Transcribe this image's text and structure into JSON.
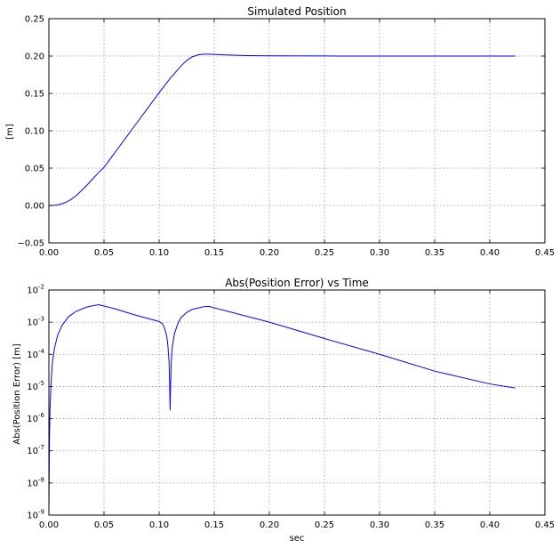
{
  "chart_data": [
    {
      "type": "line",
      "title": "Simulated Position",
      "xlabel": "",
      "ylabel": "[m]",
      "xlim": [
        0.0,
        0.45
      ],
      "ylim": [
        -0.05,
        0.25
      ],
      "grid": true,
      "y_scale": "linear",
      "xticks": [
        0.0,
        0.05,
        0.1,
        0.15,
        0.2,
        0.25,
        0.3,
        0.35,
        0.4,
        0.45
      ],
      "xtick_labels": [
        "0.00",
        "0.05",
        "0.10",
        "0.15",
        "0.20",
        "0.25",
        "0.30",
        "0.35",
        "0.40",
        "0.45"
      ],
      "yticks": [
        -0.05,
        0.0,
        0.05,
        0.1,
        0.15,
        0.2,
        0.25
      ],
      "ytick_labels": [
        "−0.05",
        "0.00",
        "0.05",
        "0.10",
        "0.15",
        "0.20",
        "0.25"
      ],
      "series": [
        {
          "color": "#0000ff",
          "x": [
            0.0,
            0.005,
            0.01,
            0.015,
            0.02,
            0.025,
            0.03,
            0.035,
            0.04,
            0.045,
            0.05,
            0.06,
            0.07,
            0.08,
            0.09,
            0.1,
            0.11,
            0.12,
            0.125,
            0.13,
            0.135,
            0.14,
            0.145,
            0.15,
            0.16,
            0.17,
            0.18,
            0.2,
            0.25,
            0.3,
            0.35,
            0.4,
            0.423
          ],
          "y": [
            0.0,
            0.0003,
            0.0015,
            0.004,
            0.008,
            0.0135,
            0.0205,
            0.028,
            0.036,
            0.044,
            0.051,
            0.071,
            0.091,
            0.111,
            0.131,
            0.151,
            0.17,
            0.187,
            0.194,
            0.199,
            0.2015,
            0.2025,
            0.2025,
            0.2022,
            0.2015,
            0.201,
            0.2006,
            0.2003,
            0.2001,
            0.2,
            0.2,
            0.2,
            0.2
          ]
        }
      ]
    },
    {
      "type": "line",
      "title": "Abs(Position Error) vs Time",
      "xlabel": "sec",
      "ylabel": "Abs(Position Error) [m]",
      "xlim": [
        0.0,
        0.45
      ],
      "ylim": [
        1e-09,
        0.01
      ],
      "grid": true,
      "y_scale": "log",
      "xticks": [
        0.0,
        0.05,
        0.1,
        0.15,
        0.2,
        0.25,
        0.3,
        0.35,
        0.4,
        0.45
      ],
      "xtick_labels": [
        "0.00",
        "0.05",
        "0.10",
        "0.15",
        "0.20",
        "0.25",
        "0.30",
        "0.35",
        "0.40",
        "0.45"
      ],
      "yticks": [
        1e-09,
        1e-08,
        1e-07,
        1e-06,
        1e-05,
        0.0001,
        0.001,
        0.01
      ],
      "ytick_labels": [
        {
          "base": "10",
          "exp": "-9"
        },
        {
          "base": "10",
          "exp": "-8"
        },
        {
          "base": "10",
          "exp": "-7"
        },
        {
          "base": "10",
          "exp": "-6"
        },
        {
          "base": "10",
          "exp": "-5"
        },
        {
          "base": "10",
          "exp": "-4"
        },
        {
          "base": "10",
          "exp": "-3"
        },
        {
          "base": "10",
          "exp": "-2"
        }
      ],
      "series": [
        {
          "color": "#0000ff",
          "x": [
            0.0,
            0.0005,
            0.001,
            0.002,
            0.003,
            0.005,
            0.008,
            0.012,
            0.018,
            0.025,
            0.035,
            0.045,
            0.06,
            0.08,
            0.1,
            0.103,
            0.105,
            0.107,
            0.108,
            0.109,
            0.1095,
            0.11,
            0.1105,
            0.111,
            0.112,
            0.114,
            0.117,
            0.12,
            0.125,
            0.13,
            0.14,
            0.145,
            0.2,
            0.25,
            0.3,
            0.35,
            0.4,
            0.423
          ],
          "y": [
            1e-09,
            2e-07,
            2e-06,
            1.2e-05,
            5e-05,
            0.00015,
            0.0004,
            0.0008,
            0.0015,
            0.0022,
            0.003,
            0.0035,
            0.0026,
            0.0016,
            0.00105,
            0.0009,
            0.00065,
            0.00035,
            0.00018,
            6e-05,
            1.5e-05,
            1.8e-06,
            1.5e-05,
            6e-05,
            0.00018,
            0.00045,
            0.0009,
            0.0014,
            0.002,
            0.0025,
            0.003,
            0.0031,
            0.001,
            0.00031,
            0.0001,
            3e-05,
            1.2e-05,
            9e-06
          ]
        }
      ]
    }
  ]
}
